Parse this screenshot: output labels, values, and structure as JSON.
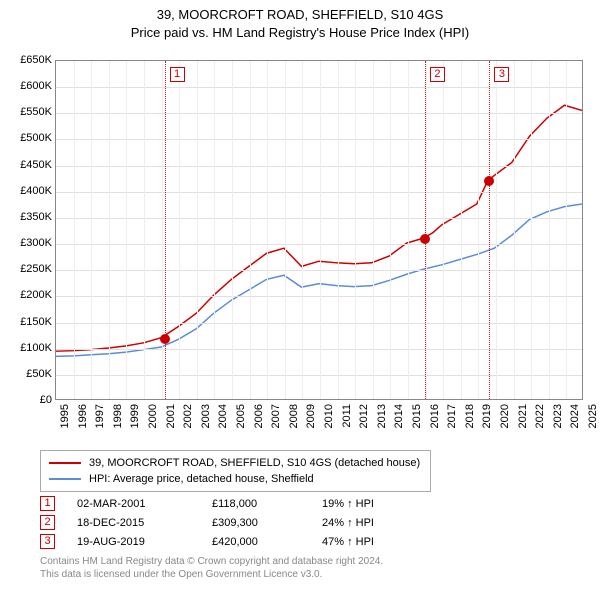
{
  "header": {
    "line1": "39, MOORCROFT ROAD, SHEFFIELD, S10 4GS",
    "line2": "Price paid vs. HM Land Registry's House Price Index (HPI)"
  },
  "chart": {
    "type": "line",
    "x_start_year": 1995,
    "x_end_year": 2025,
    "x_tick_step": 1,
    "y_min": 0,
    "y_max": 650000,
    "y_tick_step": 50000,
    "y_prefix": "£",
    "y_suffix": "K",
    "grid_color_h": "#e0e0e0",
    "grid_color_v": "#eeeeee",
    "border_color": "#888888",
    "background": "#ffffff",
    "label_fontsize": 11,
    "series": [
      {
        "name": "39, MOORCROFT ROAD, SHEFFIELD, S10 4GS (detached house)",
        "color": "#cc0000",
        "line_width": 1.5,
        "points": [
          [
            1995,
            92000
          ],
          [
            1996,
            93000
          ],
          [
            1997,
            95000
          ],
          [
            1998,
            98000
          ],
          [
            1999,
            102000
          ],
          [
            2000,
            108000
          ],
          [
            2001,
            118000
          ],
          [
            2002,
            140000
          ],
          [
            2003,
            165000
          ],
          [
            2004,
            200000
          ],
          [
            2005,
            230000
          ],
          [
            2006,
            255000
          ],
          [
            2007,
            280000
          ],
          [
            2008,
            290000
          ],
          [
            2009,
            255000
          ],
          [
            2010,
            265000
          ],
          [
            2011,
            262000
          ],
          [
            2012,
            260000
          ],
          [
            2013,
            262000
          ],
          [
            2014,
            275000
          ],
          [
            2015,
            300000
          ],
          [
            2015.96,
            309300
          ],
          [
            2016.5,
            320000
          ],
          [
            2017,
            335000
          ],
          [
            2018,
            355000
          ],
          [
            2019,
            375000
          ],
          [
            2019.63,
            420000
          ],
          [
            2020,
            430000
          ],
          [
            2021,
            455000
          ],
          [
            2022,
            505000
          ],
          [
            2023,
            540000
          ],
          [
            2024,
            565000
          ],
          [
            2025,
            555000
          ]
        ]
      },
      {
        "name": "HPI: Average price, detached house, Sheffield",
        "color": "#5b8dd6",
        "line_width": 1.5,
        "points": [
          [
            1995,
            82000
          ],
          [
            1996,
            83000
          ],
          [
            1997,
            85000
          ],
          [
            1998,
            87000
          ],
          [
            1999,
            90000
          ],
          [
            2000,
            95000
          ],
          [
            2001,
            100000
          ],
          [
            2002,
            115000
          ],
          [
            2003,
            135000
          ],
          [
            2004,
            165000
          ],
          [
            2005,
            190000
          ],
          [
            2006,
            210000
          ],
          [
            2007,
            230000
          ],
          [
            2008,
            238000
          ],
          [
            2009,
            215000
          ],
          [
            2010,
            222000
          ],
          [
            2011,
            218000
          ],
          [
            2012,
            216000
          ],
          [
            2013,
            218000
          ],
          [
            2014,
            228000
          ],
          [
            2015,
            240000
          ],
          [
            2016,
            250000
          ],
          [
            2017,
            258000
          ],
          [
            2018,
            268000
          ],
          [
            2019,
            278000
          ],
          [
            2020,
            290000
          ],
          [
            2021,
            315000
          ],
          [
            2022,
            345000
          ],
          [
            2023,
            360000
          ],
          [
            2024,
            370000
          ],
          [
            2025,
            375000
          ]
        ]
      }
    ],
    "markers": [
      {
        "num": "1",
        "year": 2001.17,
        "value": 118000
      },
      {
        "num": "2",
        "year": 2015.96,
        "value": 309300
      },
      {
        "num": "3",
        "year": 2019.63,
        "value": 420000
      }
    ]
  },
  "legend": {
    "items": [
      {
        "color": "#cc0000",
        "label": "39, MOORCROFT ROAD, SHEFFIELD, S10 4GS (detached house)"
      },
      {
        "color": "#5b8dd6",
        "label": "HPI: Average price, detached house, Sheffield"
      }
    ]
  },
  "events": [
    {
      "num": "1",
      "date": "02-MAR-2001",
      "price": "£118,000",
      "pct": "19% ↑ HPI"
    },
    {
      "num": "2",
      "date": "18-DEC-2015",
      "price": "£309,300",
      "pct": "24% ↑ HPI"
    },
    {
      "num": "3",
      "date": "19-AUG-2019",
      "price": "£420,000",
      "pct": "47% ↑ HPI"
    }
  ],
  "footer": {
    "line1": "Contains HM Land Registry data © Crown copyright and database right 2024.",
    "line2": "This data is licensed under the Open Government Licence v3.0."
  }
}
